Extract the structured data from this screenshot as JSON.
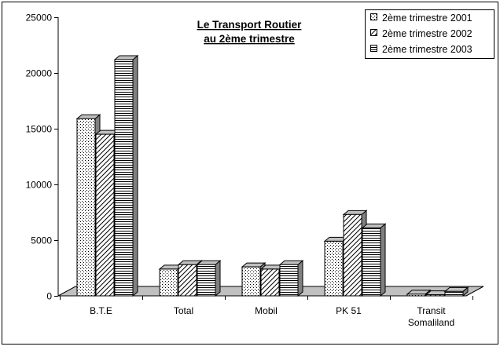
{
  "chart_data": {
    "type": "bar",
    "title_lines": [
      "Le Transport Routier",
      "au 2ème trimestre"
    ],
    "categories": [
      "B.T.E",
      "Total",
      "Mobil",
      "PK 51",
      "Transit Somaliland"
    ],
    "category_label_lines": [
      [
        "B.T.E"
      ],
      [
        "Total"
      ],
      [
        "Mobil"
      ],
      [
        "PK 51"
      ],
      [
        "Transit",
        "Somaliland"
      ]
    ],
    "series": [
      {
        "name": "2ème trimestre 2001",
        "pattern": "dots",
        "values": [
          15900,
          2400,
          2600,
          4900,
          150
        ]
      },
      {
        "name": "2ème trimestre 2002",
        "pattern": "diagonal",
        "values": [
          14500,
          2800,
          2400,
          7300,
          100
        ]
      },
      {
        "name": "2ème trimestre 2003",
        "pattern": "horizontal",
        "values": [
          21200,
          2800,
          2800,
          6100,
          400
        ]
      }
    ],
    "yticks": [
      "0",
      "5000",
      "10000",
      "15000",
      "20000",
      "25000"
    ],
    "ylim": [
      0,
      25000
    ],
    "legend_position": "top-right",
    "grid": false,
    "colors": {
      "bar_fill": "#ffffff",
      "bar_side": "#808080",
      "bar_top": "#c0c0c0",
      "floor": "#c0c0c0",
      "stroke": "#000000"
    }
  }
}
